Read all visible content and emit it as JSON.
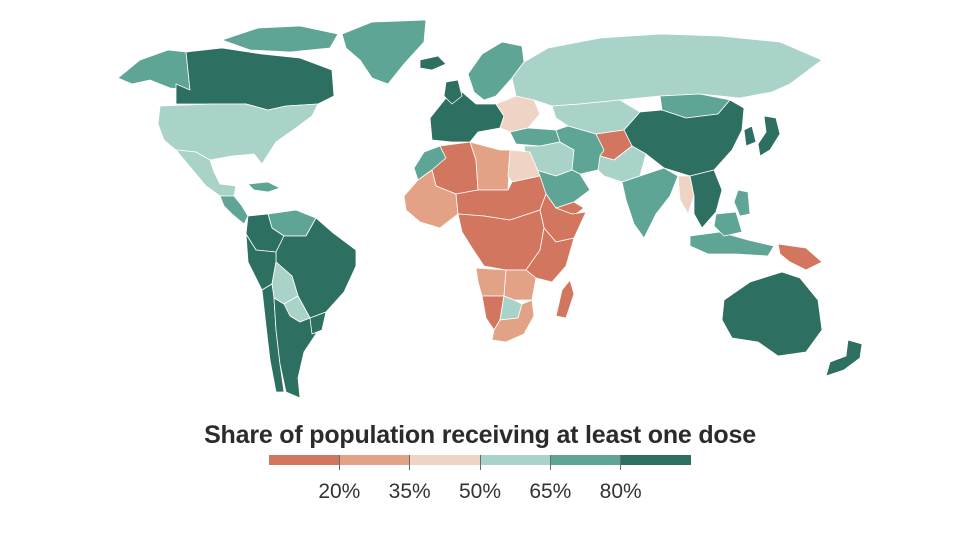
{
  "legend": {
    "title": "Share of population receiving at least one dose",
    "bins": [
      "#d3765f",
      "#e3a285",
      "#efd4c6",
      "#a9d3c8",
      "#5fa595",
      "#2d6f60"
    ],
    "labels": [
      "20%",
      "35%",
      "50%",
      "65%",
      "80%"
    ]
  },
  "map": {
    "ocean_color": "#ffffff",
    "border_color": "#ffffff",
    "regions": [
      {
        "name": "Canada",
        "bin": 5
      },
      {
        "name": "Alaska",
        "bin": 4
      },
      {
        "name": "Greenland",
        "bin": 4
      },
      {
        "name": "Arctic islands",
        "bin": 4
      },
      {
        "name": "United States",
        "bin": 3
      },
      {
        "name": "Mexico",
        "bin": 3
      },
      {
        "name": "Central America",
        "bin": 4
      },
      {
        "name": "Caribbean",
        "bin": 4
      },
      {
        "name": "Colombia",
        "bin": 5
      },
      {
        "name": "Venezuela",
        "bin": 4
      },
      {
        "name": "Brazil",
        "bin": 5
      },
      {
        "name": "Peru",
        "bin": 5
      },
      {
        "name": "Bolivia",
        "bin": 3
      },
      {
        "name": "Paraguay",
        "bin": 3
      },
      {
        "name": "Chile",
        "bin": 5
      },
      {
        "name": "Argentina",
        "bin": 5
      },
      {
        "name": "Uruguay",
        "bin": 5
      },
      {
        "name": "Iceland",
        "bin": 5
      },
      {
        "name": "Scandinavia",
        "bin": 4
      },
      {
        "name": "Western Europe",
        "bin": 5
      },
      {
        "name": "Eastern Europe",
        "bin": 2
      },
      {
        "name": "Russia",
        "bin": 3
      },
      {
        "name": "Kazakhstan",
        "bin": 3
      },
      {
        "name": "Mongolia",
        "bin": 4
      },
      {
        "name": "China",
        "bin": 5
      },
      {
        "name": "Korea",
        "bin": 5
      },
      {
        "name": "Japan",
        "bin": 5
      },
      {
        "name": "Turkey",
        "bin": 4
      },
      {
        "name": "Middle East",
        "bin": 3
      },
      {
        "name": "Saudi Arabia",
        "bin": 4
      },
      {
        "name": "Yemen",
        "bin": 0
      },
      {
        "name": "Iran",
        "bin": 4
      },
      {
        "name": "Afghanistan",
        "bin": 0
      },
      {
        "name": "Pakistan",
        "bin": 3
      },
      {
        "name": "India",
        "bin": 4
      },
      {
        "name": "Myanmar",
        "bin": 2
      },
      {
        "name": "Southeast Asia",
        "bin": 5
      },
      {
        "name": "Philippines",
        "bin": 4
      },
      {
        "name": "Indonesia",
        "bin": 4
      },
      {
        "name": "Papua New Guinea",
        "bin": 0
      },
      {
        "name": "Australia",
        "bin": 5
      },
      {
        "name": "New Zealand",
        "bin": 5
      },
      {
        "name": "Morocco",
        "bin": 4
      },
      {
        "name": "Algeria",
        "bin": 0
      },
      {
        "name": "Libya",
        "bin": 1
      },
      {
        "name": "Egypt",
        "bin": 2
      },
      {
        "name": "West Africa",
        "bin": 1
      },
      {
        "name": "Sahel",
        "bin": 0
      },
      {
        "name": "Central Africa",
        "bin": 0
      },
      {
        "name": "Horn of Africa",
        "bin": 0
      },
      {
        "name": "East Africa",
        "bin": 0
      },
      {
        "name": "Angola",
        "bin": 1
      },
      {
        "name": "Namibia",
        "bin": 0
      },
      {
        "name": "Botswana",
        "bin": 3
      },
      {
        "name": "South Africa",
        "bin": 1
      },
      {
        "name": "Zambia",
        "bin": 1
      },
      {
        "name": "Madagascar",
        "bin": 0
      }
    ]
  }
}
